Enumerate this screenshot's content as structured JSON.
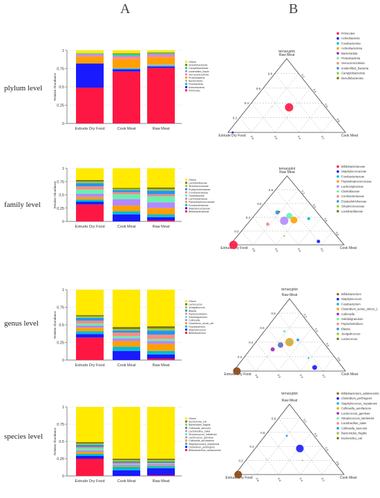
{
  "panels": {
    "left": "A",
    "right": "B"
  },
  "levels": [
    "plylum level",
    "family level",
    "genus level",
    "species level"
  ],
  "chart_data": [
    {
      "type": "bar",
      "stacked": true,
      "ylabel": "Relative Abundance",
      "yticks": [
        "0",
        "0.25",
        "0.5",
        "0.75",
        "1"
      ],
      "ylim": [
        0,
        1
      ],
      "categories": [
        "Extrude Dry Food",
        "Cook Meat",
        "Raw Meat"
      ],
      "series": [
        {
          "name": "Firmicutes",
          "color": "#ff1744",
          "values": [
            0.49,
            0.71,
            0.76
          ]
        },
        {
          "name": "Actinobacteria",
          "color": "#1a1aff",
          "values": [
            0.33,
            0.03,
            0.02
          ]
        },
        {
          "name": "Fusobacteria",
          "color": "#00bcd4",
          "values": [
            0.0,
            0.01,
            0.01
          ]
        },
        {
          "name": "Bacteroidota",
          "color": "#b0b0b0",
          "values": [
            0.0,
            0.01,
            0.02
          ]
        },
        {
          "name": "Proteobacteria",
          "color": "#ffa000",
          "values": [
            0.09,
            0.12,
            0.09
          ]
        },
        {
          "name": "Verrucomicrobiota",
          "color": "#ff8a80",
          "values": [
            0.02,
            0.03,
            0.03
          ]
        },
        {
          "name": "unidentified_Bacteria",
          "color": "#b388ff",
          "values": [
            0.02,
            0.02,
            0.02
          ]
        },
        {
          "name": "Campilobacterota",
          "color": "#00e676",
          "values": [
            0.01,
            0.02,
            0.01
          ]
        },
        {
          "name": "Desulfobacterota",
          "color": "#827717",
          "values": [
            0.0,
            0.01,
            0.01
          ]
        },
        {
          "name": "Others",
          "color": "#ffea00",
          "values": [
            0.04,
            0.04,
            0.03
          ]
        }
      ],
      "legend": [
        "Others",
        "Desulfobacterota",
        "Campilobacterota",
        "unidentified_Bacte",
        "Verrucomicrobiota",
        "Proteobacteria",
        "Bacteroidota",
        "Fusobacteria",
        "Actinobacteria",
        "Firmicutes"
      ]
    },
    {
      "type": "bar",
      "stacked": true,
      "ylabel": "Relative Abundance",
      "yticks": [
        "0",
        "0.25",
        "0.5",
        "0.75",
        "1"
      ],
      "ylim": [
        0,
        1
      ],
      "categories": [
        "Extrude Dry Food",
        "Cook Meat",
        "Raw Meat"
      ],
      "series": [
        {
          "name": "Bifidobacteriaceae",
          "color": "#ff1744",
          "values": [
            0.32,
            0.0,
            0.02
          ]
        },
        {
          "name": "Staphylococcaceae",
          "color": "#1a1aff",
          "values": [
            0.05,
            0.13,
            0.06
          ]
        },
        {
          "name": "Fusobacteriaceae",
          "color": "#00bcd4",
          "values": [
            0.04,
            0.06,
            0.05
          ]
        },
        {
          "name": "Peptostreptococcaceae",
          "color": "#ffa000",
          "values": [
            0.05,
            0.11,
            0.12
          ]
        },
        {
          "name": "Lachnospiraceae",
          "color": "#b388ff",
          "values": [
            0.06,
            0.12,
            0.11
          ]
        },
        {
          "name": "Clostridiaceae",
          "color": "#69f0ae",
          "values": [
            0.08,
            0.09,
            0.11
          ]
        },
        {
          "name": "Corobacteriaceae",
          "color": "#ff8a80",
          "values": [
            0.06,
            0.04,
            0.04
          ]
        },
        {
          "name": "Erysipelotrichaceae",
          "color": "#2196f3",
          "values": [
            0.06,
            0.04,
            0.07
          ]
        },
        {
          "name": "Streptococcaceae",
          "color": "#9acd32",
          "values": [
            0.03,
            0.02,
            0.03
          ]
        },
        {
          "name": "Lactobacillaceae",
          "color": "#827717",
          "values": [
            0.03,
            0.02,
            0.03
          ]
        },
        {
          "name": "Others",
          "color": "#ffea00",
          "values": [
            0.22,
            0.37,
            0.36
          ]
        }
      ],
      "legend": [
        "Others",
        "Lactobacillaceae",
        "Streptococcaceae",
        "Erysipelotrichaceae",
        "Corobacteriaceae",
        "Clostridiaceae",
        "Lachnospiraceae",
        "Peptostreptococcaceae",
        "Fusobacteriaceae",
        "Staphylococcaceae",
        "Bifidobacteriaceae"
      ]
    },
    {
      "type": "bar",
      "stacked": true,
      "ylabel": "Relative Abundance",
      "yticks": [
        "0",
        "0.25",
        "0.5",
        "0.75",
        "1"
      ],
      "ylim": [
        0,
        1
      ],
      "categories": [
        "Extrude Dry Food",
        "Cook Meat",
        "Raw Meat"
      ],
      "series": [
        {
          "name": "Bifidobacterium",
          "color": "#ff1744",
          "values": [
            0.32,
            0.0,
            0.02
          ]
        },
        {
          "name": "Staphylococcus",
          "color": "#1a1aff",
          "values": [
            0.05,
            0.13,
            0.06
          ]
        },
        {
          "name": "Fusobacterium",
          "color": "#00bcd4",
          "values": [
            0.04,
            0.06,
            0.05
          ]
        },
        {
          "name": "Clostridium_sensu_stricto_1",
          "color": "#ffa000",
          "values": [
            0.05,
            0.08,
            0.1
          ]
        },
        {
          "name": "Collinsella",
          "color": "#b388ff",
          "values": [
            0.03,
            0.04,
            0.04
          ]
        },
        {
          "name": "Subdoligranulum",
          "color": "#69f0ae",
          "values": [
            0.03,
            0.03,
            0.03
          ]
        },
        {
          "name": "Peptoclostridium",
          "color": "#ff8a80",
          "values": [
            0.04,
            0.05,
            0.06
          ]
        },
        {
          "name": "Blautia",
          "color": "#2196f3",
          "values": [
            0.04,
            0.03,
            0.06
          ]
        },
        {
          "name": "Jeotgalicoccus",
          "color": "#9acd32",
          "values": [
            0.02,
            0.02,
            0.03
          ]
        },
        {
          "name": "Lactococcus",
          "color": "#827717",
          "values": [
            0.02,
            0.03,
            0.03
          ]
        },
        {
          "name": "Others",
          "color": "#ffea00",
          "values": [
            0.36,
            0.53,
            0.52
          ]
        }
      ],
      "legend": [
        "Others",
        "Lactococcus",
        "Jeotgalicoccus",
        "Blautia",
        "Peptoclostridium",
        "Subdoligranulum",
        "Collinsella",
        "Clostridium_sensu_stri",
        "Fusobacterium",
        "Staphylococcus",
        "Bifidobacterium"
      ]
    },
    {
      "type": "bar",
      "stacked": true,
      "ylabel": "Relative Abundance",
      "yticks": [
        "0",
        "0.25",
        "0.5",
        "0.75",
        "1"
      ],
      "ylim": [
        0,
        1
      ],
      "categories": [
        "Extrude Dry Food",
        "Cook Meat",
        "Raw Meat"
      ],
      "series": [
        {
          "name": "Bifidobacterium_adolescentis",
          "color": "#ff1744",
          "values": [
            0.25,
            0.0,
            0.01
          ]
        },
        {
          "name": "Clostridium_perfringens",
          "color": "#1a1aff",
          "values": [
            0.04,
            0.08,
            0.1
          ]
        },
        {
          "name": "Staphylococcus_nepalensis",
          "color": "#00bcd4",
          "values": [
            0.03,
            0.05,
            0.03
          ]
        },
        {
          "name": "Collinsella_aerofaciens",
          "color": "#ffa000",
          "values": [
            0.03,
            0.01,
            0.01
          ]
        },
        {
          "name": "Lactococcus_garvieae",
          "color": "#b388ff",
          "values": [
            0.02,
            0.02,
            0.02
          ]
        },
        {
          "name": "Streptococcus_lutetiensis",
          "color": "#69f0ae",
          "values": [
            0.03,
            0.01,
            0.01
          ]
        },
        {
          "name": "Lactobacillus_sakei",
          "color": "#ff8a80",
          "values": [
            0.02,
            0.02,
            0.01
          ]
        },
        {
          "name": "Collinsella_stercoris",
          "color": "#2196f3",
          "values": [
            0.03,
            0.02,
            0.02
          ]
        },
        {
          "name": "Bacteroides_fragilis",
          "color": "#9acd32",
          "values": [
            0.02,
            0.02,
            0.02
          ]
        },
        {
          "name": "Escherichia_coli",
          "color": "#827717",
          "values": [
            0.02,
            0.02,
            0.02
          ]
        },
        {
          "name": "Others",
          "color": "#ffea00",
          "values": [
            0.51,
            0.75,
            0.75
          ]
        }
      ],
      "legend": [
        "Others",
        "Escherichia_coli",
        "Bacteroides_fragilis",
        "Collinsella_stercoris",
        "Lactobacillus_sakei",
        "Streptococcus_lutetiensis",
        "Lactococcus_garvieae",
        "Collinsella_aerofaciens",
        "Staphylococcus_nepalensis",
        "Clostridium_perfringens",
        "Bifidobacterium_adolescentis"
      ]
    },
    {
      "type": "scatter",
      "subtype": "ternary",
      "title": "ternaryplot",
      "vertices": [
        "Raw Meat",
        "Extrude Dry Food",
        "Cook Meat"
      ],
      "ticks": [
        "0.2",
        "0.4",
        "0.6",
        "0.8"
      ],
      "legend": [
        "Firmicutes",
        "Actinobacteria",
        "Fusobacteriota",
        "Actinobacteriota",
        "Bacteroidota",
        "Proteobacteria",
        "Verrucomicrobiota",
        "unidentified_Bacteria",
        "Campylobacterota",
        "Desulfobacterota"
      ],
      "legend_colors": [
        "#ff1744",
        "#1a1aff",
        "#00bcd4",
        "#ffa000",
        "#9c27b0",
        "#69f0ae",
        "#ff8a80",
        "#2196f3",
        "#9acd32",
        "#827717"
      ],
      "points": [
        {
          "raw": 0.34,
          "dry": 0.31,
          "cook": 0.35,
          "size": 6,
          "color": "#ff1744"
        },
        {
          "raw": 0.0,
          "dry": 0.96,
          "cook": 0.04,
          "size": 1.5,
          "color": "#1a1aff"
        },
        {
          "raw": 0.35,
          "dry": 0.45,
          "cook": 0.2,
          "size": 0.8,
          "color": "#9acd32"
        }
      ]
    },
    {
      "type": "scatter",
      "subtype": "ternary",
      "title": "ternaryplot",
      "vertices": [
        "Raw Meat",
        "Extrude Dry Food",
        "Cook Meat"
      ],
      "ticks": [
        "0.2",
        "0.4",
        "0.6",
        "0.8"
      ],
      "legend": [
        "Bifidobacteriaceae",
        "Staphylococcaceae",
        "Fusobacteriaceae",
        "Peptostreptococcaceae",
        "Lachnospiraceae",
        "Clostridiaceae",
        "Corobacteriaceae",
        "Erysipelotrichaceae",
        "Streptococcaceae",
        "Lactobacillaceae"
      ],
      "legend_colors": [
        "#ff1744",
        "#1a1aff",
        "#00bcd4",
        "#ffa000",
        "#b388ff",
        "#69f0ae",
        "#ff8a80",
        "#2196f3",
        "#9acd32",
        "#827717"
      ],
      "points": [
        {
          "raw": 0.0,
          "dry": 0.97,
          "cook": 0.03,
          "size": 6,
          "color": "#ff1744"
        },
        {
          "raw": 0.35,
          "dry": 0.35,
          "cook": 0.3,
          "size": 6,
          "color": "#b388ff"
        },
        {
          "raw": 0.36,
          "dry": 0.26,
          "cook": 0.38,
          "size": 5,
          "color": "#ffa000"
        },
        {
          "raw": 0.42,
          "dry": 0.27,
          "cook": 0.31,
          "size": 4.5,
          "color": "#69f0ae"
        },
        {
          "raw": 0.47,
          "dry": 0.35,
          "cook": 0.18,
          "size": 3,
          "color": "#2196f3"
        },
        {
          "raw": 0.38,
          "dry": 0.12,
          "cook": 0.5,
          "size": 2.2,
          "color": "#00bcd4"
        },
        {
          "raw": 0.3,
          "dry": 0.52,
          "cook": 0.18,
          "size": 2.5,
          "color": "#ff8a80"
        },
        {
          "raw": 0.48,
          "dry": 0.33,
          "cook": 0.19,
          "size": 1.5,
          "color": "#827717"
        },
        {
          "raw": 0.13,
          "dry": 0.46,
          "cook": 0.41,
          "size": 1.2,
          "color": "#9acd32"
        },
        {
          "raw": 0.05,
          "dry": 0.2,
          "cook": 0.75,
          "size": 2.5,
          "color": "#1a1aff"
        }
      ]
    },
    {
      "type": "scatter",
      "subtype": "ternary",
      "title": "ternaryplot",
      "vertices": [
        "Raw Meat",
        "Extrude Dry Food",
        "Cook Meat"
      ],
      "ticks": [
        "0.2",
        "0.4",
        "0.6",
        "0.8"
      ],
      "legend": [
        "Bifidobacterium",
        "Staphylococcus",
        "Fusobacterium",
        "Clostridium_sensu_stricto_1",
        "Collinsella",
        "Subdoligranulum",
        "Peptoclostridium",
        "Blautia",
        "Jeotgalicoccus",
        "Lactococcus"
      ],
      "legend_colors": [
        "#827717",
        "#1a1aff",
        "#00bcd4",
        "#ffa000",
        "#9c27b0",
        "#69f0ae",
        "#ff8a80",
        "#2196f3",
        "#9acd32",
        "#827717"
      ],
      "points": [
        {
          "raw": 0.0,
          "dry": 0.97,
          "cook": 0.03,
          "size": 5.5,
          "color": "#8b4513"
        },
        {
          "raw": 0.4,
          "dry": 0.3,
          "cook": 0.3,
          "size": 6,
          "color": "#ffa000"
        },
        {
          "raw": 0.4,
          "dry": 0.3,
          "cook": 0.3,
          "size": 4.5,
          "color": "#bdb76b"
        },
        {
          "raw": 0.36,
          "dry": 0.4,
          "cook": 0.24,
          "size": 4,
          "color": "#5c6bc0"
        },
        {
          "raw": 0.3,
          "dry": 0.5,
          "cook": 0.2,
          "size": 3,
          "color": "#9c27b0"
        },
        {
          "raw": 0.43,
          "dry": 0.21,
          "cook": 0.36,
          "size": 2,
          "color": "#2196f3"
        },
        {
          "raw": 0.55,
          "dry": 0.27,
          "cook": 0.18,
          "size": 1.8,
          "color": "#69f0ae"
        },
        {
          "raw": 0.05,
          "dry": 0.25,
          "cook": 0.7,
          "size": 3.5,
          "color": "#1a1aff"
        },
        {
          "raw": 0.18,
          "dry": 0.24,
          "cook": 0.58,
          "size": 1.2,
          "color": "#00bcd4"
        }
      ]
    },
    {
      "type": "scatter",
      "subtype": "ternary",
      "title": "ternaryplot",
      "vertices": [
        "Raw Meat",
        "Extrude Dry Food",
        "Cook Meat"
      ],
      "ticks": [
        "0.2",
        "0.4",
        "0.6",
        "0.8"
      ],
      "legend": [
        "Bifidobacterium_adolescentis",
        "Clostridium_perfringens",
        "Staphylococcus_nepalensis",
        "Collinsella_aerofaciens",
        "Lactococcus_garvieae",
        "Streptococcus_lutetiensis",
        "Lactobacillus_sakei",
        "Collinsella_stercoris",
        "Bacteroides_fragilis",
        "Escherichia_coli"
      ],
      "legend_colors": [
        "#827717",
        "#1a1aff",
        "#00bcd4",
        "#ffa000",
        "#9c27b0",
        "#69f0ae",
        "#ff8a80",
        "#2196f3",
        "#9acd32",
        "#827717"
      ],
      "points": [
        {
          "raw": 0.0,
          "dry": 0.97,
          "cook": 0.03,
          "size": 5.5,
          "color": "#8b4513"
        },
        {
          "raw": 0.37,
          "dry": 0.22,
          "cook": 0.41,
          "size": 5.5,
          "color": "#1a1aff"
        },
        {
          "raw": 0.55,
          "dry": 0.25,
          "cook": 0.2,
          "size": 1.5,
          "color": "#2196f3"
        },
        {
          "raw": 0.22,
          "dry": 0.6,
          "cook": 0.18,
          "size": 0.8,
          "color": "#9acd32"
        },
        {
          "raw": 0.2,
          "dry": 0.28,
          "cook": 0.52,
          "size": 0.8,
          "color": "#827717"
        }
      ]
    }
  ]
}
